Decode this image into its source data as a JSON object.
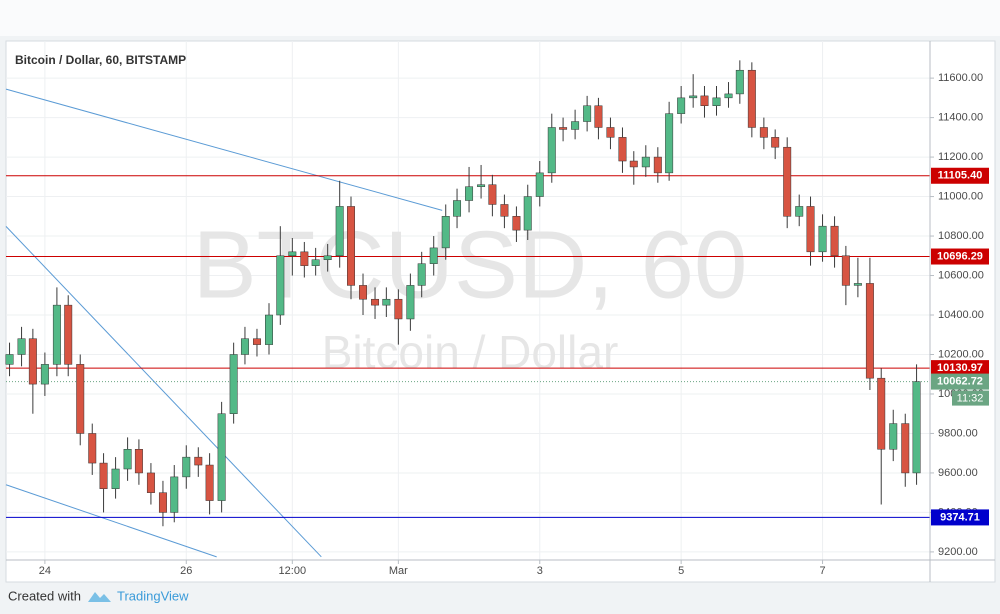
{
  "chart_data": {
    "type": "candlestick",
    "title": "Bitcoin / Dollar, 60, BITSTAMP",
    "watermark": "BTCUSD, 60",
    "watermark_subtitle": "Bitcoin / Dollar",
    "footer": {
      "text": "Created with",
      "brand": "TradingView"
    },
    "up_color": "#53b987",
    "down_color": "#d75442",
    "wick_color": "#3a3a3a",
    "grid": true,
    "xlim": [
      23.45,
      36.52
    ],
    "ylim": [
      9159,
      11788
    ],
    "xticks": [
      24,
      26,
      {
        "value": 27.5,
        "label": "12:00"
      },
      {
        "value": 29,
        "label": "Mar"
      },
      {
        "value": 31,
        "label": "3"
      },
      {
        "value": 33,
        "label": "5"
      },
      {
        "value": 35,
        "label": "7"
      }
    ],
    "yticks": [
      {
        "value": 9200,
        "label": "9200.00"
      },
      {
        "value": 9400,
        "label": "9400.00"
      },
      {
        "value": 9600,
        "label": "9600.00"
      },
      {
        "value": 9800,
        "label": "9800.00"
      },
      {
        "value": 10000,
        "label": "10000.00"
      },
      {
        "value": 10200,
        "label": "10200.00"
      },
      {
        "value": 10400,
        "label": "10400.00"
      },
      {
        "value": 10600,
        "label": "10600.00"
      },
      {
        "value": 10800,
        "label": "10800.00"
      },
      {
        "value": 11000,
        "label": "11000.00"
      },
      {
        "value": 11200,
        "label": "11200.00"
      },
      {
        "value": 11400,
        "label": "11400.00"
      },
      {
        "value": 11600,
        "label": "11600.00"
      }
    ],
    "x": [
      23.5,
      23.67,
      23.83,
      24,
      24.17,
      24.33,
      24.5,
      24.67,
      24.83,
      25,
      25.17,
      25.33,
      25.5,
      25.67,
      25.83,
      26,
      26.17,
      26.33,
      26.5,
      26.67,
      26.83,
      27,
      27.17,
      27.33,
      27.5,
      27.67,
      27.83,
      28,
      28.17,
      28.33,
      28.5,
      28.67,
      28.83,
      29,
      29.17,
      29.33,
      29.5,
      29.67,
      29.83,
      30,
      30.17,
      30.33,
      30.5,
      30.67,
      30.83,
      31,
      31.17,
      31.33,
      31.5,
      31.67,
      31.83,
      32,
      32.17,
      32.33,
      32.5,
      32.67,
      32.83,
      33,
      33.17,
      33.33,
      33.5,
      33.67,
      33.83,
      34,
      34.17,
      34.33,
      34.5,
      34.67,
      34.83,
      35,
      35.17,
      35.33,
      35.5,
      35.67,
      35.83,
      36,
      36.17,
      36.33
    ],
    "open": [
      10150,
      10200,
      10280,
      10050,
      10150,
      10450,
      10150,
      9800,
      9650,
      9520,
      9620,
      9720,
      9600,
      9500,
      9400,
      9580,
      9680,
      9640,
      9460,
      9900,
      10200,
      10280,
      10250,
      10400,
      10700,
      10720,
      10650,
      10680,
      10700,
      10950,
      10550,
      10480,
      10450,
      10480,
      10380,
      10550,
      10660,
      10740,
      10900,
      10980,
      11050,
      11060,
      10960,
      10900,
      10830,
      11000,
      11120,
      11350,
      11340,
      11380,
      11460,
      11350,
      11300,
      11180,
      11150,
      11200,
      11120,
      11420,
      11500,
      11510,
      11460,
      11500,
      11520,
      11640,
      11350,
      11300,
      11250,
      10900,
      10950,
      10720,
      10850,
      10700,
      10550,
      10560,
      10080,
      9720,
      9850,
      9600
    ],
    "high": [
      10260,
      10340,
      10330,
      10210,
      10540,
      10500,
      10200,
      9850,
      9700,
      9680,
      9780,
      9770,
      9650,
      9560,
      9640,
      9740,
      9730,
      9700,
      9960,
      10260,
      10340,
      10330,
      10460,
      10850,
      10790,
      10770,
      10740,
      10760,
      11080,
      11000,
      10610,
      10540,
      10540,
      10530,
      10610,
      10720,
      10800,
      10960,
      11040,
      11150,
      11160,
      11110,
      11010,
      10950,
      11060,
      11180,
      11420,
      11400,
      11440,
      11510,
      11500,
      11400,
      11350,
      11230,
      11260,
      11250,
      11480,
      11560,
      11620,
      11560,
      11560,
      11580,
      11690,
      11680,
      11400,
      11340,
      11300,
      11010,
      11000,
      10910,
      10900,
      10750,
      10690,
      10690,
      10130,
      9920,
      9900,
      10150
    ],
    "low": [
      10090,
      10140,
      9900,
      9990,
      10090,
      10090,
      9740,
      9590,
      9400,
      9470,
      9560,
      9540,
      9440,
      9330,
      9350,
      9520,
      9580,
      9390,
      9400,
      9850,
      10150,
      10190,
      10200,
      10350,
      10600,
      10590,
      10600,
      10620,
      10640,
      10480,
      10400,
      10380,
      10390,
      10250,
      10320,
      10490,
      10600,
      10680,
      10840,
      10920,
      10990,
      10900,
      10840,
      10770,
      10780,
      10950,
      11070,
      11280,
      11290,
      11330,
      11290,
      11240,
      11120,
      11060,
      11100,
      11070,
      11080,
      11370,
      11450,
      11400,
      11410,
      11450,
      11470,
      11300,
      11240,
      11190,
      10840,
      10850,
      10650,
      10670,
      10640,
      10450,
      10490,
      10020,
      9440,
      9660,
      9530,
      9540
    ],
    "close": [
      10200,
      10280,
      10050,
      10150,
      10450,
      10150,
      9800,
      9650,
      9520,
      9620,
      9720,
      9600,
      9500,
      9400,
      9580,
      9680,
      9640,
      9460,
      9900,
      10200,
      10280,
      10250,
      10400,
      10700,
      10720,
      10650,
      10680,
      10700,
      10950,
      10550,
      10480,
      10450,
      10480,
      10380,
      10550,
      10660,
      10740,
      10900,
      10980,
      11050,
      11060,
      10960,
      10900,
      10830,
      11000,
      11120,
      11350,
      11340,
      11380,
      11460,
      11350,
      11300,
      11180,
      11150,
      11200,
      11120,
      11420,
      11500,
      11510,
      11460,
      11500,
      11520,
      11640,
      11350,
      11300,
      11250,
      10900,
      10950,
      10720,
      10850,
      10700,
      10550,
      10560,
      10080,
      9720,
      9850,
      9600,
      10062.72
    ],
    "levels": [
      {
        "value": 11105.4,
        "label": "11105.40",
        "color": "#cc0000"
      },
      {
        "value": 10696.29,
        "label": "10696.29",
        "color": "#cc0000"
      },
      {
        "value": 10130.97,
        "label": "10130.97",
        "color": "#cc0000"
      },
      {
        "value": 9374.71,
        "label": "9374.71",
        "color": "#0000cc"
      }
    ],
    "last_price": 10062.72,
    "last_price_color": "#6ba583",
    "countdown": "11:32",
    "trendline_color": "#5b9bd5",
    "trendlines": [
      {
        "x": [
          23.45,
          29.62
        ],
        "y": [
          11544,
          10930
        ]
      },
      {
        "x": [
          23.45,
          27.91
        ],
        "y": [
          10849,
          9175
        ]
      },
      {
        "x": [
          23.45,
          26.43
        ],
        "y": [
          9540,
          9175
        ]
      }
    ]
  }
}
